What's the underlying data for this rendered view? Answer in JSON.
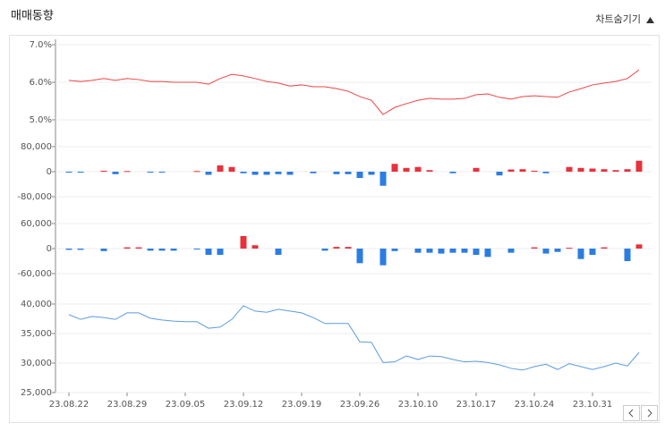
{
  "header": {
    "title": "매매동향",
    "toggle": "차트숨기기"
  },
  "chart_data": [
    {
      "type": "line",
      "color": "#ef4444",
      "ylim": [
        5.0,
        7.0
      ],
      "yticks": [
        {
          "value": 7.0,
          "label": "7.0%"
        },
        {
          "value": 6.0,
          "label": "6.0%"
        },
        {
          "value": 5.0,
          "label": "5.0%"
        }
      ],
      "values": [
        6.05,
        6.02,
        6.05,
        6.1,
        6.05,
        6.1,
        6.07,
        6.02,
        6.02,
        6.0,
        6.0,
        6.0,
        5.95,
        6.1,
        6.21,
        6.17,
        6.1,
        6.02,
        5.98,
        5.9,
        5.93,
        5.88,
        5.88,
        5.83,
        5.76,
        5.62,
        5.52,
        5.14,
        5.33,
        5.43,
        5.52,
        5.57,
        5.55,
        5.55,
        5.57,
        5.67,
        5.69,
        5.6,
        5.55,
        5.62,
        5.64,
        5.62,
        5.6,
        5.74,
        5.83,
        5.93,
        5.98,
        6.02,
        6.1,
        6.33
      ]
    },
    {
      "type": "bar",
      "pos_color": "#e8313b",
      "neg_color": "#2b7de1",
      "ylim": [
        -80000,
        80000
      ],
      "yticks": [
        {
          "value": 80000,
          "label": "80,000"
        },
        0,
        {
          "value": -80000,
          "label": "-80,000"
        }
      ],
      "values": [
        -2000,
        -2000,
        0,
        3000,
        -8000,
        2000,
        0,
        -3000,
        -2000,
        0,
        0,
        2000,
        -10000,
        20000,
        15000,
        -5000,
        -10000,
        -10000,
        -8000,
        -10000,
        0,
        -5000,
        0,
        -8000,
        -8000,
        -20000,
        -10000,
        -45000,
        25000,
        12000,
        15000,
        5000,
        0,
        -5000,
        0,
        12000,
        0,
        -12000,
        7000,
        8000,
        3000,
        -5000,
        0,
        15000,
        12000,
        10000,
        8000,
        5000,
        8000,
        35000
      ]
    },
    {
      "type": "bar",
      "pos_color": "#e8313b",
      "neg_color": "#2b7de1",
      "ylim": [
        -60000,
        60000
      ],
      "yticks": [
        {
          "value": 60000,
          "label": "60,000"
        },
        0,
        {
          "value": -60000,
          "label": "-60,000"
        }
      ],
      "values": [
        -3000,
        -3000,
        0,
        -6000,
        0,
        3000,
        3000,
        -5000,
        -5000,
        -5000,
        0,
        -2000,
        -15000,
        -15000,
        0,
        30000,
        8000,
        0,
        -15000,
        0,
        0,
        0,
        -5000,
        4000,
        4000,
        -35000,
        0,
        -40000,
        -6000,
        0,
        -10000,
        -10000,
        -12000,
        -10000,
        -10000,
        -15000,
        -20000,
        0,
        -10000,
        0,
        3000,
        -12000,
        -8000,
        2000,
        -25000,
        -15000,
        3000,
        0,
        -30000,
        10000
      ]
    },
    {
      "type": "line",
      "color": "#5b9bdf",
      "ylim": [
        25000,
        40000
      ],
      "yticks": [
        {
          "value": 40000,
          "label": "40,000"
        },
        {
          "value": 35000,
          "label": "35,000"
        },
        {
          "value": 30000,
          "label": "30,000"
        },
        {
          "value": 25000,
          "label": "25,000"
        }
      ],
      "values": [
        38200,
        37400,
        37900,
        37700,
        37400,
        38500,
        38500,
        37600,
        37300,
        37100,
        37000,
        37000,
        35900,
        36100,
        37400,
        39700,
        38800,
        38600,
        39100,
        38800,
        38500,
        37700,
        36700,
        36700,
        36700,
        33600,
        33500,
        30100,
        30200,
        31200,
        30600,
        31200,
        31100,
        30600,
        30200,
        30300,
        30100,
        29700,
        29100,
        28800,
        29400,
        29800,
        28900,
        29900,
        29400,
        28900,
        29400,
        30000,
        29500,
        31800
      ],
      "categories": [
        "23.08.22",
        null,
        null,
        null,
        null,
        "23.08.29",
        null,
        null,
        null,
        null,
        "23.09.05",
        null,
        null,
        null,
        null,
        "23.09.12",
        null,
        null,
        null,
        null,
        "23.09.19",
        null,
        null,
        null,
        null,
        "23.09.26",
        null,
        null,
        null,
        null,
        "23.10.10",
        null,
        null,
        null,
        null,
        "23.10.17",
        null,
        null,
        null,
        null,
        "23.10.24",
        null,
        null,
        null,
        null,
        "23.10.31",
        null,
        null,
        null,
        null
      ]
    }
  ]
}
